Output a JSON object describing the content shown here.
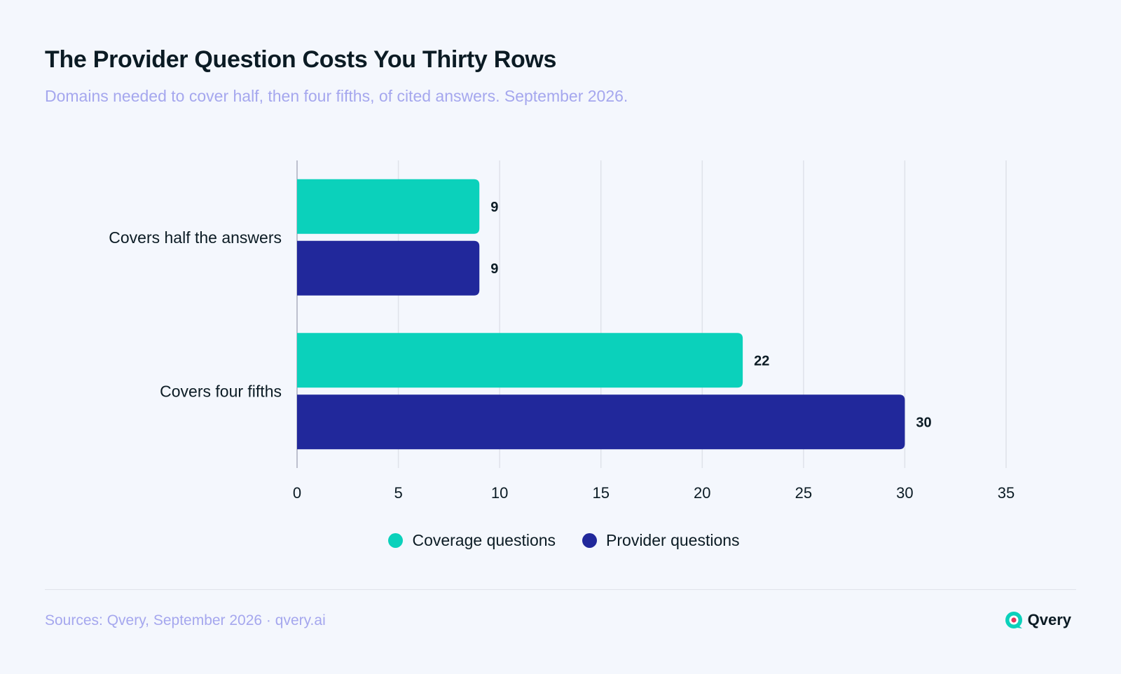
{
  "header": {
    "title": "The Provider Question Costs You Thirty Rows",
    "subtitle": "Domains needed to cover half, then four fifths, of cited answers. September 2026."
  },
  "footer": {
    "source": "Sources: Qvery, September 2026 · qvery.ai",
    "brand": "Qvery"
  },
  "colors": {
    "coverage": "#0bd1bb",
    "provider": "#21289b",
    "grid": "#dfe2ea",
    "text": "#0b1b24",
    "muted": "#a5a7ee"
  },
  "chart_data": {
    "type": "bar",
    "orientation": "horizontal",
    "categories": [
      "Covers half the answers",
      "Covers four fifths"
    ],
    "series": [
      {
        "name": "Coverage questions",
        "values": [
          9,
          22
        ],
        "color": "#0bd1bb"
      },
      {
        "name": "Provider questions",
        "values": [
          9,
          30
        ],
        "color": "#21289b"
      }
    ],
    "xlim": [
      0,
      35
    ],
    "xticks": [
      0,
      5,
      10,
      15,
      20,
      25,
      30,
      35
    ],
    "grid": "vertical",
    "legend": "bottom-center",
    "data_labels": true
  }
}
